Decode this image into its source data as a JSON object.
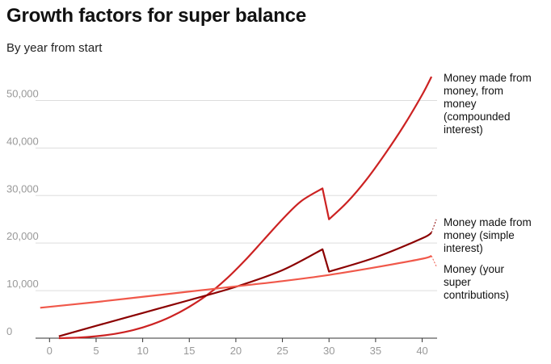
{
  "chart_data": {
    "type": "line",
    "title": "Growth factors for super balance",
    "subtitle": "By year from start",
    "xlabel": "",
    "ylabel": "",
    "xlim": [
      -1.5,
      41.6
    ],
    "ylim": [
      0,
      55000
    ],
    "x_ticks": [
      "0",
      "5",
      "10",
      "15",
      "20",
      "25",
      "30",
      "35",
      "40"
    ],
    "y_ticks": [
      "0",
      "10,000",
      "20,000",
      "30,000",
      "40,000",
      "50,000"
    ],
    "grid": true,
    "legend": "direct labels at right end of lines",
    "series": [
      {
        "name": "Money made from money, from money (compounded interest)",
        "color": "#cc2222",
        "x": [
          1,
          3,
          5,
          7,
          9,
          11,
          13,
          15,
          17,
          19,
          21,
          23,
          25,
          27,
          29.3,
          30,
          32,
          34,
          36,
          38,
          40,
          41
        ],
        "y": [
          0,
          100,
          400,
          900,
          1700,
          2900,
          4500,
          6600,
          9200,
          12500,
          16400,
          20700,
          25000,
          28800,
          31500,
          25000,
          28700,
          33300,
          38700,
          44600,
          51200,
          55000
        ]
      },
      {
        "name": "Money made from money (simple interest)",
        "color": "#8b0000",
        "x": [
          1,
          5,
          10,
          15,
          20,
          25,
          29.3,
          30,
          35,
          40,
          41
        ],
        "y": [
          400,
          2600,
          5300,
          8000,
          10800,
          14300,
          18700,
          14000,
          17000,
          21000,
          22200
        ]
      },
      {
        "name": "Money (your super contributions)",
        "color": "#f0584a",
        "x": [
          -1,
          5,
          10,
          15,
          20,
          25,
          30,
          35,
          40,
          41
        ],
        "y": [
          6400,
          7600,
          8700,
          9800,
          10900,
          12000,
          13300,
          14900,
          16700,
          17300
        ]
      }
    ],
    "labels": {
      "compounded": [
        "Money made from",
        "money, from",
        "money",
        "(compounded",
        "interest)"
      ],
      "simple": [
        "Money made from",
        "money (simple",
        "interest)"
      ],
      "contributions": [
        "Money (your",
        "super",
        "contributions)"
      ]
    }
  }
}
